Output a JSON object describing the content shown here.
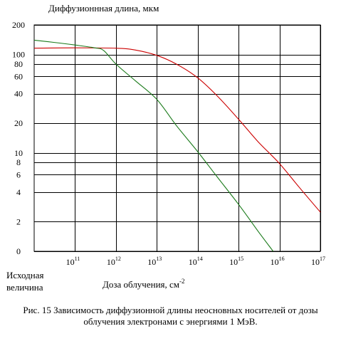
{
  "chart_data": {
    "type": "line",
    "title": "Диффузионнная длина, мкм",
    "xlabel": "Доза облучения, см",
    "xlabel_superscript": "-2",
    "x_start_label": [
      "Исходная",
      "величина"
    ],
    "x_scale": "log",
    "y_scale": "log",
    "xlim": [
      10000000000.0,
      1e+17
    ],
    "ylim": [
      1,
      200
    ],
    "x_ticks": [
      {
        "base": "10",
        "exp": "11",
        "value": 100000000000.0
      },
      {
        "base": "10",
        "exp": "12",
        "value": 1000000000000.0
      },
      {
        "base": "10",
        "exp": "13",
        "value": 10000000000000.0
      },
      {
        "base": "10",
        "exp": "14",
        "value": 100000000000000.0
      },
      {
        "base": "10",
        "exp": "15",
        "value": 1000000000000000.0
      },
      {
        "base": "10",
        "exp": "16",
        "value": 1e+16
      },
      {
        "base": "10",
        "exp": "17",
        "value": 1e+17
      }
    ],
    "y_ticks": [
      {
        "label": "0",
        "value": 1
      },
      {
        "label": "2",
        "value": 2
      },
      {
        "label": "4",
        "value": 4
      },
      {
        "label": "6",
        "value": 6
      },
      {
        "label": "8",
        "value": 8
      },
      {
        "label": "10",
        "value": 10
      },
      {
        "label": "20",
        "value": 20
      },
      {
        "label": "40",
        "value": 40
      },
      {
        "label": "60",
        "value": 60
      },
      {
        "label": "80",
        "value": 80
      },
      {
        "label": "100",
        "value": 100
      },
      {
        "label": "200",
        "value": 200
      }
    ],
    "grid": true,
    "series": [
      {
        "color": "#cc0000",
        "x": [
          10000000000.0,
          100000000000.0,
          1000000000000.0,
          3000000000000.0,
          10000000000000.0,
          30000000000000.0,
          100000000000000.0,
          300000000000000.0,
          1000000000000000.0,
          3000000000000000.0,
          1e+16,
          3e+16,
          1e+17
        ],
        "y": [
          116,
          117,
          116,
          111,
          98,
          80,
          58,
          38,
          22,
          13,
          7.8,
          4.5,
          2.5
        ]
      },
      {
        "color": "#1a7a1a",
        "x": [
          10000000000.0,
          30000000000.0,
          100000000000.0,
          300000000000.0,
          500000000000.0,
          1000000000000.0,
          3000000000000.0,
          10000000000000.0,
          30000000000000.0,
          100000000000000.0,
          300000000000000.0,
          1000000000000000.0,
          3000000000000000.0,
          7000000000000000.0
        ],
        "y": [
          140,
          133,
          125,
          117,
          110,
          80,
          54,
          35,
          19,
          10.3,
          5.7,
          3.0,
          1.6,
          1.0
        ]
      }
    ]
  },
  "caption": {
    "line1": "Рис. 15 Зависимость диффузионной длины неосновных носителей от дозы",
    "line2": "облучения электронами с энергиями 1  МэВ."
  }
}
